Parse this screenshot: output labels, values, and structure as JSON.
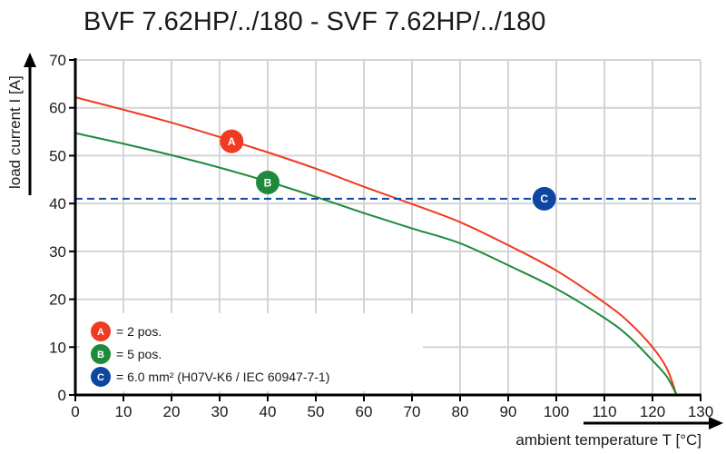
{
  "chart_data": {
    "type": "line",
    "title": "BVF 7.62HP/../180 - SVF 7.62HP/../180",
    "xlabel": "ambient temperature T [°C]",
    "ylabel": "load current I [A]",
    "xlim": [
      0,
      130
    ],
    "ylim": [
      0,
      70
    ],
    "xticks": [
      "0",
      "10",
      "20",
      "30",
      "40",
      "50",
      "60",
      "70",
      "80",
      "90",
      "100",
      "110",
      "120",
      "130"
    ],
    "yticks": [
      "0",
      "10",
      "20",
      "30",
      "40",
      "50",
      "60",
      "70"
    ],
    "grid": true,
    "legend_placement": "bottom-left",
    "series": [
      {
        "marker": "A",
        "color": "#f03a22",
        "x": [
          0,
          10,
          20,
          30,
          40,
          50,
          60,
          70,
          80,
          90,
          100,
          110,
          115,
          120,
          123,
          125
        ],
        "y": [
          62.2,
          59.6,
          56.9,
          53.9,
          50.7,
          47.3,
          43.5,
          39.9,
          36.1,
          31.3,
          26.0,
          19.3,
          15.3,
          10.0,
          5.5,
          0
        ]
      },
      {
        "marker": "B",
        "color": "#1f8a3c",
        "x": [
          0,
          10,
          20,
          30,
          40,
          50,
          60,
          70,
          80,
          90,
          100,
          110,
          115,
          120,
          123,
          125
        ],
        "y": [
          54.7,
          52.5,
          50.1,
          47.5,
          44.6,
          41.4,
          38.0,
          34.8,
          31.7,
          27.1,
          22.2,
          16.1,
          12.3,
          7.2,
          3.8,
          0
        ]
      },
      {
        "marker": "C",
        "color": "#0d47a1",
        "style": "dashed",
        "x": [
          0,
          130
        ],
        "y": [
          41,
          41
        ]
      }
    ],
    "markers": [
      {
        "label": "A",
        "x": 32.5,
        "y": 53,
        "color": "#f03a22"
      },
      {
        "label": "B",
        "x": 40,
        "y": 44.4,
        "color": "#1f8a3c"
      },
      {
        "label": "C",
        "x": 97.5,
        "y": 41,
        "color": "#0d47a1"
      }
    ],
    "legend": [
      {
        "marker": "A",
        "text": "= 2 pos.",
        "color": "#f03a22"
      },
      {
        "marker": "B",
        "text": "= 5 pos.",
        "color": "#1f8a3c"
      },
      {
        "marker": "C",
        "text": "= 6.0 mm² (H07V-K6 / IEC 60947-7-1)",
        "color": "#0d47a1"
      }
    ]
  }
}
